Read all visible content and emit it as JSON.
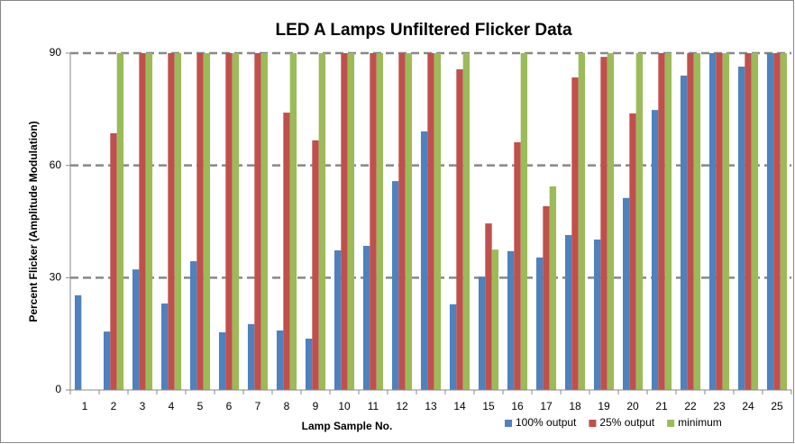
{
  "chart_data": {
    "type": "bar",
    "title": "LED A Lamps Unfiltered Flicker Data",
    "x_label": "Lamp Sample No.",
    "y_label": "Percent Flicker (Amplitude Modulation)",
    "categories": [
      "1",
      "2",
      "3",
      "4",
      "5",
      "6",
      "7",
      "8",
      "9",
      "10",
      "11",
      "12",
      "13",
      "14",
      "15",
      "16",
      "17",
      "18",
      "19",
      "20",
      "21",
      "22",
      "23",
      "24",
      "25"
    ],
    "series": [
      {
        "name": "100% output",
        "color": "#4f81bd",
        "values": [
          25.3,
          15.6,
          32.2,
          23.1,
          34.4,
          15.4,
          17.6,
          15.9,
          13.7,
          37.3,
          38.5,
          55.8,
          69.1,
          22.9,
          30.3,
          37.1,
          35.4,
          41.4,
          40.2,
          51.3,
          74.8,
          84.0,
          90,
          86.4,
          90
        ]
      },
      {
        "name": "25% output",
        "color": "#c0504d",
        "values": [
          null,
          68.6,
          90,
          90,
          90,
          90,
          90,
          74.1,
          66.7,
          90,
          90,
          90,
          90,
          85.7,
          44.5,
          66.2,
          49.1,
          83.5,
          89,
          73.9,
          90,
          90,
          90,
          90,
          90
        ]
      },
      {
        "name": "minimum",
        "color": "#9bbb59",
        "values": [
          null,
          90,
          90,
          90,
          90,
          90,
          90,
          90,
          90,
          90,
          90,
          90,
          90,
          90,
          37.5,
          90,
          54.4,
          90,
          90,
          90,
          90,
          90,
          90,
          90,
          90
        ]
      }
    ],
    "ylim": [
      0,
      90
    ],
    "yticks": [
      0,
      30,
      60,
      90
    ],
    "grid": true,
    "legend": "bottom-right"
  }
}
